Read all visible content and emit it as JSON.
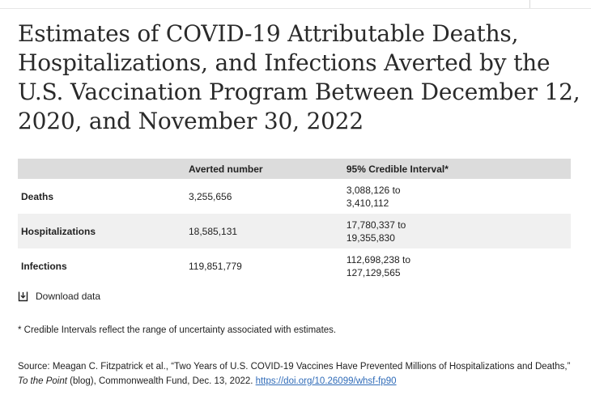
{
  "title": "Estimates of COVID-19 Attributable Deaths, Hospitalizations, and Infections Averted by the U.S. Vaccination Program Between December 12, 2020, and November 30, 2022",
  "table": {
    "headers": [
      "",
      "Averted number",
      "95% Credible Interval*"
    ],
    "rows": [
      {
        "name": "Deaths",
        "averted": "3,255,656",
        "ci_low": "3,088,126 to",
        "ci_high": "3,410,112"
      },
      {
        "name": "Hospitalizations",
        "averted": "18,585,131",
        "ci_low": "17,780,337 to",
        "ci_high": "19,355,830"
      },
      {
        "name": "Infections",
        "averted": "119,851,779",
        "ci_low": "112,698,238 to",
        "ci_high": "127,129,565"
      }
    ]
  },
  "download": {
    "label": "Download data",
    "icon": "download-icon"
  },
  "footnote": "* Credible Intervals reflect the range of uncertainty associated with estimates.",
  "source": {
    "prefix": "Source: Meagan C. Fitzpatrick et al., “Two Years of U.S. COVID-19 Vaccines Have Prevented Millions of Hospitalizations and Deaths,” ",
    "publication": "To the Point",
    "suffix": " (blog), Commonwealth Fund, Dec. 13, 2022. ",
    "link_text": "https://doi.org/10.26099/whsf-fp90"
  },
  "colors": {
    "header_bg": "#dcdcdc",
    "alt_row_bg": "#f0f0f0",
    "link": "#2f6bb8"
  }
}
